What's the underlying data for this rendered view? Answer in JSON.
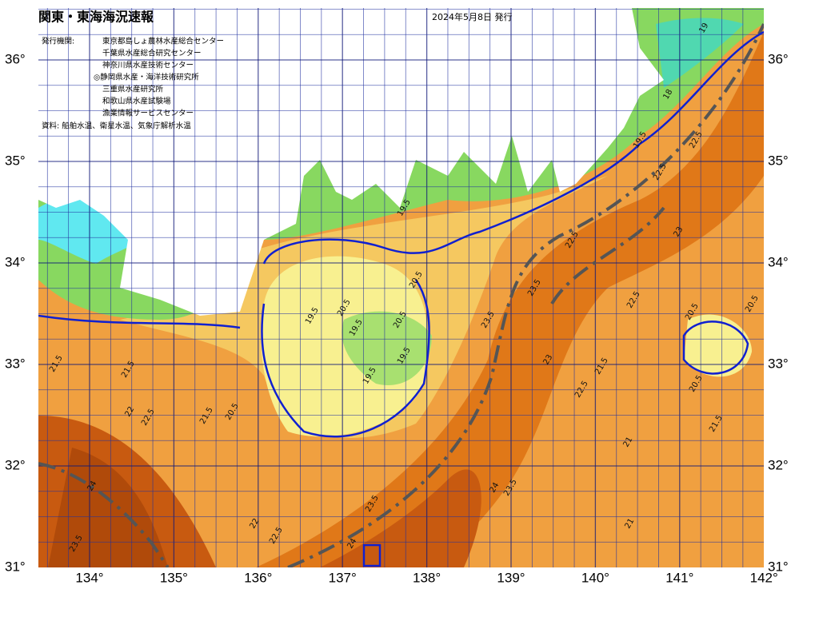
{
  "header": {
    "title": "関東・東海海況速報",
    "date": "2024年5月8日 発行"
  },
  "issuers": {
    "label": "発行機関:",
    "organizations": [
      "東京都島しょ農林水産総合センター",
      "千葉県水産総合研究センター",
      "神奈川県水産技術センター",
      "◎静岡県水産・海洋技術研究所",
      "三重県水産研究所",
      "和歌山県水産試験場",
      "漁業情報サービスセンター"
    ]
  },
  "source": "資料: 船舶水温、衛星水温、気象庁解析水温",
  "map": {
    "latitude_labels_left": [
      "36°",
      "35°",
      "34°",
      "33°",
      "32°",
      "31°"
    ],
    "latitude_labels_right": [
      "36°",
      "35°",
      "34°",
      "33°",
      "32°",
      "31°"
    ],
    "longitude_labels": [
      "134°",
      "135°",
      "136°",
      "137°",
      "138°",
      "139°",
      "140°",
      "141°",
      "142°"
    ],
    "contour_labels": [
      "19",
      "18",
      "19.5",
      "22.5",
      "22.5",
      "22.5",
      "23",
      "22.5",
      "23",
      "22.5",
      "21.5",
      "20.5",
      "20.5",
      "21.5",
      "21.5",
      "22",
      "22.5",
      "21.5",
      "20.5",
      "19.5",
      "20.5",
      "19.5",
      "20.5",
      "19.5",
      "19.5",
      "20.5",
      "23.5",
      "23.5",
      "24",
      "23.5",
      "22",
      "22.5",
      "23.5",
      "24",
      "24",
      "23.5",
      "21",
      "21",
      "21.5",
      "20.5",
      "19.5"
    ]
  }
}
